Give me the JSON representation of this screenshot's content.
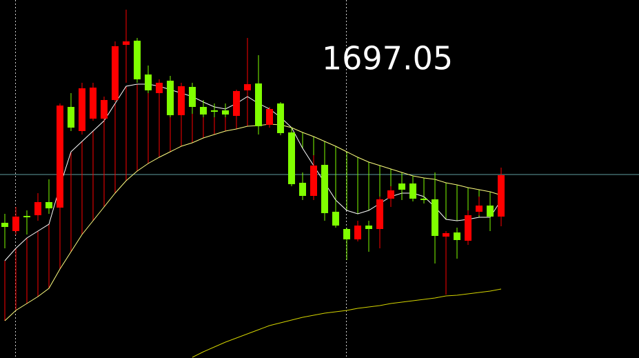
{
  "chart_data": {
    "type": "candlestick",
    "annotation": "1697.05",
    "price_line": 1696.7,
    "price_line_color": "#5f9ea0",
    "up_color": "#ff0000",
    "down_color": "#80ff00",
    "ylim": [
      1670.1,
      1722
    ],
    "open": [
      1689.7,
      1688.5,
      1690.7,
      1690.8,
      1692.7,
      1691.9,
      1706.5,
      1703.0,
      1704.8,
      1704.8,
      1707.5,
      1715.5,
      1716.1,
      1711.2,
      1708.5,
      1710.3,
      1705.3,
      1709.4,
      1706.5,
      1706.0,
      1706.0,
      1705.2,
      1708.9,
      1709.9,
      1703.9,
      1707.0,
      1702.8,
      1695.5,
      1693.6,
      1698.1,
      1691.3,
      1688.8,
      1687.3,
      1689.3,
      1688.8,
      1693.2,
      1695.4,
      1695.4,
      1693.2,
      1693.1,
      1687.7,
      1688.3,
      1687.1,
      1691.3,
      1692.2,
      1690.6
    ],
    "high": [
      1691.0,
      1692.0,
      1691.5,
      1694.0,
      1696.0,
      1707.0,
      1708.5,
      1710.0,
      1710.0,
      1708.0,
      1716.0,
      1720.6,
      1716.5,
      1712.5,
      1710.5,
      1711.0,
      1710.0,
      1710.0,
      1707.5,
      1707.0,
      1707.0,
      1709.0,
      1716.5,
      1714.0,
      1706.5,
      1707.2,
      1703.5,
      1697.0,
      1699.5,
      1698.5,
      1693.0,
      1689.0,
      1690.0,
      1690.0,
      1693.5,
      1695.0,
      1696.5,
      1696.5,
      1694.0,
      1697.0,
      1688.5,
      1689.0,
      1691.5,
      1693.5,
      1693.0,
      1697.7
    ],
    "low": [
      1686.0,
      1688.0,
      1688.0,
      1690.0,
      1691.0,
      1691.5,
      1703.0,
      1702.5,
      1704.5,
      1704.5,
      1707.2,
      1710.0,
      1710.0,
      1708.5,
      1708.0,
      1705.0,
      1705.0,
      1705.5,
      1705.0,
      1705.0,
      1705.0,
      1704.8,
      1708.0,
      1702.5,
      1703.5,
      1702.4,
      1695.0,
      1693.0,
      1693.0,
      1690.0,
      1689.0,
      1684.3,
      1687.0,
      1685.5,
      1686.0,
      1692.0,
      1693.0,
      1692.8,
      1692.5,
      1683.8,
      1679.3,
      1684.5,
      1686.5,
      1690.8,
      1688.5,
      1689.2
    ],
    "close": [
      1689.1,
      1690.6,
      1690.5,
      1692.7,
      1691.8,
      1706.7,
      1703.5,
      1709.2,
      1709.3,
      1707.5,
      1715.3,
      1716.0,
      1710.5,
      1708.9,
      1710.0,
      1705.3,
      1709.5,
      1706.5,
      1705.4,
      1705.8,
      1705.4,
      1708.8,
      1709.8,
      1703.7,
      1706.2,
      1702.7,
      1695.3,
      1693.6,
      1698.0,
      1691.1,
      1689.3,
      1687.3,
      1689.3,
      1688.8,
      1693.1,
      1694.4,
      1694.5,
      1693.2,
      1693.0,
      1687.8,
      1688.2,
      1687.2,
      1690.8,
      1692.2,
      1690.6,
      1696.6
    ],
    "series": [
      {
        "color": "#ffffff",
        "values": [
          1684.2,
          1686.0,
          1687.5,
          1688.5,
          1689.5,
          1695.0,
          1700.0,
          1701.5,
          1703.0,
          1704.5,
          1707.0,
          1709.5,
          1709.8,
          1709.8,
          1709.5,
          1709.0,
          1708.5,
          1708.0,
          1707.2,
          1706.5,
          1706.2,
          1707.0,
          1708.0,
          1707.0,
          1706.2,
          1705.0,
          1703.5,
          1700.5,
          1698.0,
          1695.5,
          1693.0,
          1691.5,
          1691.0,
          1691.5,
          1692.5,
          1693.5,
          1694.0,
          1694.0,
          1693.5,
          1692.0,
          1690.2,
          1690.0,
          1690.2,
          1690.5,
          1690.5,
          1693.0
        ]
      },
      {
        "color": "#ffff80",
        "values": [
          1675.5,
          1677.0,
          1678.0,
          1679.0,
          1680.2,
          1683.0,
          1685.5,
          1688.0,
          1690.0,
          1692.0,
          1694.0,
          1695.8,
          1697.2,
          1698.3,
          1699.2,
          1700.0,
          1700.8,
          1701.3,
          1702.0,
          1702.5,
          1703.0,
          1703.3,
          1703.7,
          1703.8,
          1704.0,
          1703.9,
          1703.5,
          1702.8,
          1702.2,
          1701.5,
          1700.8,
          1700.0,
          1699.2,
          1698.5,
          1698.0,
          1697.5,
          1697.0,
          1696.5,
          1696.2,
          1696.0,
          1695.5,
          1695.2,
          1694.8,
          1694.5,
          1694.2,
          1693.7
        ]
      },
      {
        "color": "#d4d400",
        "values": [
          null,
          null,
          null,
          null,
          null,
          null,
          null,
          null,
          null,
          null,
          null,
          null,
          null,
          null,
          null,
          null,
          null,
          1670.2,
          1671.0,
          1671.7,
          1672.4,
          1673.0,
          1673.6,
          1674.2,
          1674.8,
          1675.2,
          1675.6,
          1676.0,
          1676.3,
          1676.6,
          1676.8,
          1677.0,
          1677.3,
          1677.5,
          1677.7,
          1678.0,
          1678.2,
          1678.4,
          1678.6,
          1678.8,
          1679.1,
          1679.2,
          1679.4,
          1679.6,
          1679.8,
          1680.1
        ]
      }
    ]
  }
}
